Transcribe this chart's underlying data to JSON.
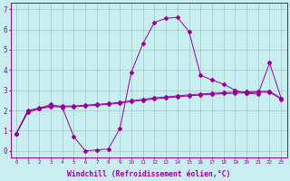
{
  "title": "",
  "xlabel": "Windchill (Refroidissement éolien,°C)",
  "ylabel": "",
  "bg_color": "#c8eef0",
  "grid_color": "#a0c8c8",
  "line_color": "#990099",
  "xlim": [
    -0.5,
    23.5
  ],
  "ylim": [
    -0.3,
    7.3
  ],
  "xticks": [
    0,
    1,
    2,
    3,
    4,
    5,
    6,
    7,
    8,
    9,
    10,
    11,
    12,
    13,
    14,
    15,
    16,
    17,
    18,
    19,
    20,
    21,
    22,
    23
  ],
  "yticks": [
    0,
    1,
    2,
    3,
    4,
    5,
    6,
    7
  ],
  "x": [
    0,
    1,
    2,
    3,
    4,
    5,
    6,
    7,
    8,
    9,
    10,
    11,
    12,
    13,
    14,
    15,
    16,
    17,
    18,
    19,
    20,
    21,
    22,
    23
  ],
  "y_main": [
    0.85,
    1.9,
    2.1,
    2.3,
    2.15,
    0.7,
    0.0,
    0.05,
    0.1,
    1.1,
    3.9,
    5.3,
    6.35,
    6.55,
    6.6,
    5.9,
    3.75,
    3.5,
    3.3,
    3.0,
    2.85,
    2.8,
    4.35,
    2.6
  ],
  "y_line2": [
    0.85,
    2.0,
    2.12,
    2.22,
    2.22,
    2.22,
    2.26,
    2.3,
    2.34,
    2.4,
    2.48,
    2.55,
    2.62,
    2.67,
    2.72,
    2.77,
    2.81,
    2.85,
    2.88,
    2.9,
    2.92,
    2.94,
    2.95,
    2.6
  ],
  "y_line3": [
    0.85,
    1.95,
    2.08,
    2.18,
    2.18,
    2.18,
    2.22,
    2.26,
    2.3,
    2.36,
    2.44,
    2.5,
    2.57,
    2.62,
    2.67,
    2.72,
    2.76,
    2.8,
    2.83,
    2.85,
    2.87,
    2.89,
    2.9,
    2.56
  ]
}
